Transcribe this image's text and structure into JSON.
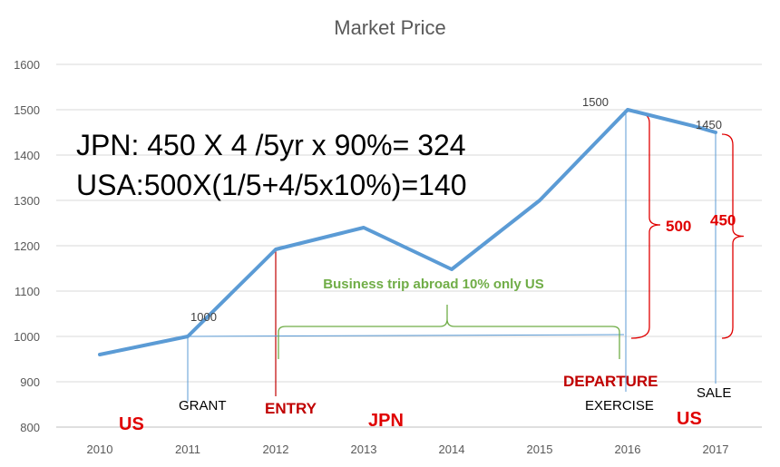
{
  "chart_data": {
    "type": "line",
    "title": "Market Price",
    "xlabel": "",
    "ylabel": "",
    "categories": [
      "2010",
      "2011",
      "2012",
      "2013",
      "2014",
      "2015",
      "2016",
      "2017"
    ],
    "x": [
      2010,
      2010.25,
      2010.5,
      2010.75,
      2011,
      2011.25,
      2011.5,
      2011.75,
      2012,
      2012.25,
      2012.5,
      2012.75,
      2013,
      2013.25,
      2013.5,
      2013.75,
      2014,
      2014.25,
      2014.5,
      2014.75,
      2015,
      2015.25,
      2015.5,
      2015.75,
      2016,
      2016.25,
      2016.5,
      2016.75,
      2017
    ],
    "series": [
      {
        "name": "",
        "values": [
          960,
          970,
          980,
          990,
          1000,
          1048,
          1096,
          1144,
          1192,
          1204,
          1216,
          1228,
          1240,
          1217,
          1194,
          1171,
          1148,
          1186,
          1224,
          1262,
          1300,
          1350,
          1400,
          1450,
          1500,
          1488,
          1476,
          1464,
          1450
        ],
        "color": "#5b9bd5"
      }
    ],
    "ylim": [
      800,
      1600
    ],
    "yticks": [
      "800",
      "900",
      "1000",
      "1100",
      "1200",
      "1300",
      "1400",
      "1500",
      "1600"
    ],
    "grid": true,
    "legend": "none",
    "point_labels": [
      {
        "x": 2011,
        "y": 1000,
        "text": "1000"
      },
      {
        "x": 2016,
        "y": 1500,
        "text": "1500"
      },
      {
        "x": 2017,
        "y": 1450,
        "text": "1450"
      }
    ],
    "annotations": {
      "formula_jpn": "JPN: 450 X 4 /5yr x 90%= 324",
      "formula_usa": "USA:500X(1/5+4/5x10%)=140",
      "business_trip": "Business trip abroad 10% only US",
      "gain_500": "500",
      "gain_450": "450",
      "events": [
        {
          "year": 2011,
          "label": "GRANT",
          "color": "#5b9bd5"
        },
        {
          "year": 2012,
          "label": "ENTRY",
          "color": "#c00000"
        },
        {
          "year": 2016,
          "label": "DEPARTURE",
          "color": "#c00000"
        },
        {
          "year": 2016,
          "label": "EXERCISE",
          "color": "#5b9bd5"
        },
        {
          "year": 2017,
          "label": "SALE",
          "color": "#5b9bd5"
        }
      ],
      "countries": [
        {
          "label": "US"
        },
        {
          "label": "JPN"
        },
        {
          "label": "US"
        }
      ]
    },
    "colors": {
      "line": "#5b9bd5",
      "red": "#e00000",
      "dark_red": "#c00000",
      "green": "#70ad47",
      "grid": "#d9d9d9"
    }
  }
}
